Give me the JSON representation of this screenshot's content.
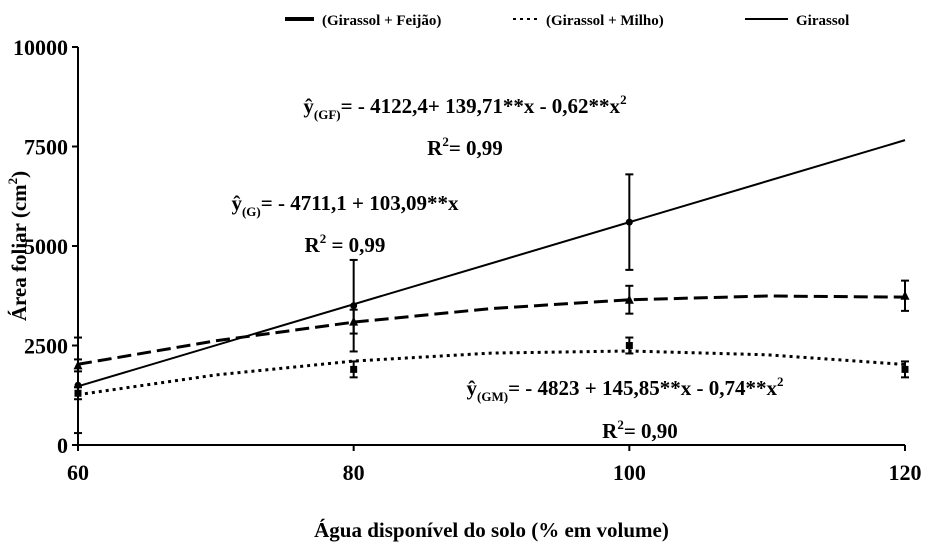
{
  "chart_data": {
    "type": "line",
    "xlim": [
      60,
      120
    ],
    "xticks": [
      60,
      80,
      100,
      120
    ],
    "ylim": [
      0,
      10000
    ],
    "yticks": [
      0,
      2500,
      5000,
      7500,
      10000
    ],
    "x_label": "Água disponível do solo (% em volume)",
    "y_label": [
      {
        "text": "Área foliar (cm"
      },
      {
        "text": "2",
        "sup": true
      },
      {
        "text": ")"
      }
    ],
    "series": [
      {
        "name": "(Girassol + Feijão)",
        "color": "#000000",
        "dash": "14 6",
        "x": [
          60,
          70,
          80,
          90,
          100,
          110,
          120
        ],
        "values": [
          2028.2,
          2619.3,
          3086.4,
          3429.5,
          3648.6,
          3743.7,
          3714.8
        ],
        "marker": "triangle",
        "obs_x": [
          60,
          80,
          100,
          120
        ],
        "obs_values": [
          2000,
          3100,
          3650,
          3750
        ],
        "obs_errors": [
          150,
          300,
          350,
          380
        ]
      },
      {
        "name": "(Girassol + Milho)",
        "color": "#000000",
        "dash": "3 4",
        "x": [
          60,
          70,
          80,
          90,
          100,
          110,
          120
        ],
        "values": [
          1264,
          1760.5,
          2109,
          2309.5,
          2362,
          2266.5,
          2023
        ],
        "marker": "square",
        "obs_x": [
          60,
          80,
          100,
          120
        ],
        "obs_values": [
          1300,
          1900,
          2500,
          1900
        ],
        "obs_errors": [
          150,
          200,
          200,
          200
        ]
      },
      {
        "name": "Girassol",
        "color": "#000000",
        "dash": "",
        "x": [
          60,
          120
        ],
        "values": [
          1474.3,
          7659.7
        ],
        "marker": "circle",
        "obs_x": [
          60,
          80,
          100
        ],
        "obs_values": [
          1500,
          3500,
          5600
        ],
        "obs_errors": [
          1200,
          1150,
          1200
        ]
      }
    ],
    "annotations": [
      [
        {
          "text": "ŷ"
        },
        {
          "text": "(GF)",
          "sub": true
        },
        {
          "text": "= - 4122,4+ 139,71**x - 0,62**x"
        },
        {
          "text": "2",
          "sup": true
        }
      ],
      [
        {
          "text": "R"
        },
        {
          "text": "2",
          "sup": true
        },
        {
          "text": "= 0,99"
        }
      ],
      [
        {
          "text": "ŷ"
        },
        {
          "text": "(G)",
          "sub": true
        },
        {
          "text": "= - 4711,1 + 103,09**x"
        }
      ],
      [
        {
          "text": "R"
        },
        {
          "text": "2",
          "sup": true
        },
        {
          "text": " = 0,99"
        }
      ],
      [
        {
          "text": "ŷ"
        },
        {
          "text": "(GM)",
          "sub": true
        },
        {
          "text": "= - 4823 + 145,85**x - 0,74**x"
        },
        {
          "text": "2",
          "sup": true
        }
      ],
      [
        {
          "text": "R"
        },
        {
          "text": "2",
          "sup": true
        },
        {
          "text": "= 0,90"
        }
      ]
    ]
  }
}
